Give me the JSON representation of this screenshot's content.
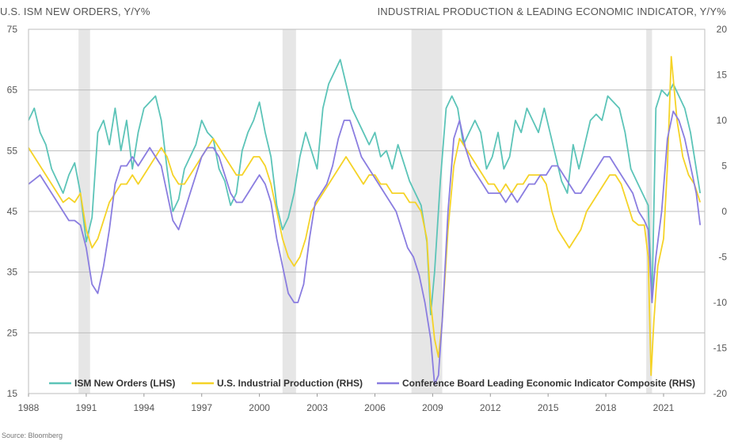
{
  "chart_data": {
    "type": "line",
    "title_left": "U.S. ISM NEW ORDERS, Y/Y%",
    "title_right": "INDUSTRIAL PRODUCTION & LEADING ECONOMIC INDICATOR, Y/Y%",
    "source": "Source: Bloomberg",
    "x_range": [
      1988,
      2023.2
    ],
    "x_ticks": [
      "1988",
      "1991",
      "1994",
      "1997",
      "2000",
      "2003",
      "2006",
      "2009",
      "2012",
      "2015",
      "2018",
      "2021"
    ],
    "x_tick_values": [
      1988,
      1991,
      1994,
      1997,
      2000,
      2003,
      2006,
      2009,
      2012,
      2015,
      2018,
      2021
    ],
    "y_left": {
      "range": [
        15,
        75
      ],
      "ticks": [
        "15",
        "25",
        "35",
        "45",
        "55",
        "65",
        "75"
      ],
      "tick_values": [
        15,
        25,
        35,
        45,
        55,
        65,
        75
      ]
    },
    "y_right": {
      "range": [
        -20,
        20
      ],
      "ticks": [
        "-20",
        "-15",
        "-10",
        "-5",
        "0",
        "5",
        "10",
        "15",
        "20"
      ],
      "tick_values": [
        -20,
        -15,
        -10,
        -5,
        0,
        5,
        10,
        15,
        20
      ]
    },
    "grid": true,
    "legend_placement": "bottom",
    "recessions": [
      [
        1990.6,
        1991.2
      ],
      [
        2001.2,
        2001.9
      ],
      [
        2007.9,
        2009.5
      ],
      [
        2020.1,
        2020.4
      ]
    ],
    "colors": {
      "ism": "#5cc4b8",
      "ip": "#f5d327",
      "lei": "#8a7de0",
      "recession": "#e6e6e6",
      "grid": "#bdbdbd"
    },
    "series": [
      {
        "name": "ISM New Orders (LHS)",
        "axis": "left",
        "color_key": "ism",
        "x": [
          1988,
          1988.3,
          1988.6,
          1988.9,
          1989.2,
          1989.5,
          1989.8,
          1990.1,
          1990.4,
          1990.7,
          1991.0,
          1991.3,
          1991.6,
          1991.9,
          1992.2,
          1992.5,
          1992.8,
          1993.1,
          1993.4,
          1993.7,
          1994.0,
          1994.3,
          1994.6,
          1994.9,
          1995.2,
          1995.5,
          1995.8,
          1996.1,
          1996.4,
          1996.7,
          1997.0,
          1997.3,
          1997.6,
          1997.9,
          1998.2,
          1998.5,
          1998.8,
          1999.1,
          1999.4,
          1999.7,
          2000.0,
          2000.3,
          2000.6,
          2000.9,
          2001.2,
          2001.5,
          2001.8,
          2002.1,
          2002.4,
          2002.7,
          2003.0,
          2003.3,
          2003.6,
          2003.9,
          2004.2,
          2004.5,
          2004.8,
          2005.1,
          2005.4,
          2005.7,
          2006.0,
          2006.3,
          2006.6,
          2006.9,
          2007.2,
          2007.5,
          2007.8,
          2008.1,
          2008.4,
          2008.7,
          2008.9,
          2009.1,
          2009.4,
          2009.7,
          2010.0,
          2010.3,
          2010.6,
          2010.9,
          2011.2,
          2011.5,
          2011.8,
          2012.1,
          2012.4,
          2012.7,
          2013.0,
          2013.3,
          2013.6,
          2013.9,
          2014.2,
          2014.5,
          2014.8,
          2015.1,
          2015.4,
          2015.7,
          2016.0,
          2016.3,
          2016.6,
          2016.9,
          2017.2,
          2017.5,
          2017.8,
          2018.1,
          2018.4,
          2018.7,
          2019.0,
          2019.3,
          2019.6,
          2019.9,
          2020.2,
          2020.4,
          2020.6,
          2020.9,
          2021.2,
          2021.5,
          2021.8,
          2022.1,
          2022.4,
          2022.7,
          2022.9
        ],
        "values": [
          60,
          62,
          58,
          56,
          52,
          50,
          48,
          51,
          53,
          48,
          40,
          44,
          58,
          60,
          56,
          62,
          55,
          60,
          52,
          58,
          62,
          63,
          64,
          60,
          52,
          45,
          47,
          52,
          54,
          56,
          60,
          58,
          57,
          52,
          50,
          46,
          48,
          55,
          58,
          60,
          63,
          58,
          54,
          46,
          42,
          44,
          48,
          54,
          58,
          55,
          52,
          62,
          66,
          68,
          70,
          66,
          62,
          60,
          58,
          56,
          58,
          54,
          55,
          52,
          56,
          53,
          50,
          48,
          46,
          40,
          28,
          35,
          50,
          62,
          64,
          62,
          56,
          58,
          60,
          58,
          52,
          54,
          58,
          52,
          54,
          60,
          58,
          62,
          60,
          58,
          62,
          58,
          54,
          50,
          48,
          56,
          52,
          56,
          60,
          61,
          60,
          64,
          63,
          62,
          58,
          52,
          50,
          48,
          46,
          30,
          62,
          65,
          64,
          66,
          64,
          62,
          58,
          52,
          48
        ]
      },
      {
        "name": "U.S. Industrial Production (RHS)",
        "axis": "right",
        "color_key": "ip",
        "x": [
          1988,
          1988.3,
          1988.6,
          1988.9,
          1989.2,
          1989.5,
          1989.8,
          1990.1,
          1990.4,
          1990.7,
          1991.0,
          1991.3,
          1991.6,
          1991.9,
          1992.2,
          1992.5,
          1992.8,
          1993.1,
          1993.4,
          1993.7,
          1994.0,
          1994.3,
          1994.6,
          1994.9,
          1995.2,
          1995.5,
          1995.8,
          1996.1,
          1996.4,
          1996.7,
          1997.0,
          1997.3,
          1997.6,
          1997.9,
          1998.2,
          1998.5,
          1998.8,
          1999.1,
          1999.4,
          1999.7,
          2000.0,
          2000.3,
          2000.6,
          2000.9,
          2001.2,
          2001.5,
          2001.8,
          2002.1,
          2002.4,
          2002.7,
          2003.0,
          2003.3,
          2003.6,
          2003.9,
          2004.2,
          2004.5,
          2004.8,
          2005.1,
          2005.4,
          2005.7,
          2006.0,
          2006.3,
          2006.6,
          2006.9,
          2007.2,
          2007.5,
          2007.8,
          2008.1,
          2008.4,
          2008.7,
          2008.9,
          2009.1,
          2009.3,
          2009.5,
          2009.8,
          2010.1,
          2010.4,
          2010.7,
          2011.0,
          2011.3,
          2011.6,
          2011.9,
          2012.2,
          2012.5,
          2012.8,
          2013.1,
          2013.4,
          2013.7,
          2014.0,
          2014.3,
          2014.6,
          2014.9,
          2015.2,
          2015.5,
          2015.8,
          2016.1,
          2016.4,
          2016.7,
          2017.0,
          2017.3,
          2017.6,
          2017.9,
          2018.2,
          2018.5,
          2018.8,
          2019.1,
          2019.4,
          2019.7,
          2020.0,
          2020.2,
          2020.35,
          2020.5,
          2020.7,
          2021.0,
          2021.2,
          2021.4,
          2021.7,
          2022.0,
          2022.3,
          2022.6,
          2022.9
        ],
        "values": [
          7,
          6,
          5,
          4,
          3,
          2,
          1,
          1.5,
          1,
          2,
          -2,
          -4,
          -3,
          -1,
          1,
          2,
          3,
          3,
          4,
          3,
          4,
          5,
          6,
          7,
          6,
          4,
          3,
          3,
          4,
          5,
          6,
          7,
          8,
          7,
          6,
          5,
          4,
          4,
          5,
          6,
          6,
          5,
          3,
          0,
          -3,
          -5,
          -6,
          -5,
          -3,
          0,
          1,
          2,
          3,
          4,
          5,
          6,
          5,
          4,
          3,
          4,
          4,
          3,
          3,
          2,
          2,
          2,
          1,
          1,
          0,
          -3,
          -10,
          -14,
          -16,
          -12,
          -2,
          5,
          8,
          7,
          6,
          5,
          4,
          3,
          3,
          2,
          3,
          2,
          3,
          3,
          4,
          4,
          4,
          3,
          0,
          -2,
          -3,
          -4,
          -3,
          -2,
          0,
          1,
          2,
          3,
          4,
          4,
          3,
          1,
          -1,
          -1.5,
          -1.5,
          -5,
          -18,
          -12,
          -6,
          -3,
          5,
          17,
          10,
          6,
          4,
          3,
          1
        ]
      },
      {
        "name": "Conference Board Leading Economic Indicator Composite (RHS)",
        "axis": "right",
        "color_key": "lei",
        "x": [
          1988,
          1988.3,
          1988.6,
          1988.9,
          1989.2,
          1989.5,
          1989.8,
          1990.1,
          1990.4,
          1990.7,
          1991.0,
          1991.3,
          1991.6,
          1991.9,
          1992.2,
          1992.5,
          1992.8,
          1993.1,
          1993.4,
          1993.7,
          1994.0,
          1994.3,
          1994.6,
          1994.9,
          1995.2,
          1995.5,
          1995.8,
          1996.1,
          1996.4,
          1996.7,
          1997.0,
          1997.3,
          1997.6,
          1997.9,
          1998.2,
          1998.5,
          1998.8,
          1999.1,
          1999.4,
          1999.7,
          2000.0,
          2000.3,
          2000.6,
          2000.9,
          2001.2,
          2001.5,
          2001.8,
          2002.0,
          2002.3,
          2002.6,
          2002.9,
          2003.2,
          2003.5,
          2003.8,
          2004.1,
          2004.4,
          2004.7,
          2005.0,
          2005.3,
          2005.6,
          2005.9,
          2006.2,
          2006.5,
          2006.8,
          2007.1,
          2007.4,
          2007.7,
          2008.0,
          2008.3,
          2008.6,
          2008.9,
          2009.1,
          2009.3,
          2009.5,
          2009.8,
          2010.1,
          2010.4,
          2010.7,
          2011.0,
          2011.3,
          2011.6,
          2011.9,
          2012.2,
          2012.5,
          2012.8,
          2013.1,
          2013.4,
          2013.7,
          2014.0,
          2014.3,
          2014.6,
          2014.9,
          2015.2,
          2015.5,
          2015.8,
          2016.1,
          2016.4,
          2016.7,
          2017.0,
          2017.3,
          2017.6,
          2017.9,
          2018.2,
          2018.5,
          2018.8,
          2019.1,
          2019.4,
          2019.7,
          2020.0,
          2020.2,
          2020.4,
          2020.6,
          2020.9,
          2021.2,
          2021.5,
          2021.8,
          2022.1,
          2022.4,
          2022.7,
          2022.9
        ],
        "values": [
          3,
          3.5,
          4,
          3,
          2,
          1,
          0,
          -1,
          -1,
          -1.5,
          -4,
          -8,
          -9,
          -6,
          -2,
          3,
          5,
          5,
          6,
          5,
          6,
          7,
          6,
          5,
          2,
          -1,
          -2,
          0,
          2,
          4,
          6,
          7,
          7,
          6,
          4,
          2,
          1,
          1,
          2,
          3,
          4,
          3,
          1,
          -3,
          -6,
          -9,
          -10,
          -10,
          -8,
          -3,
          1,
          2,
          3,
          5,
          8,
          10,
          10,
          8,
          6,
          5,
          4,
          3,
          2,
          1,
          0,
          -2,
          -4,
          -5,
          -7,
          -10,
          -14,
          -19,
          -18,
          -12,
          0,
          8,
          10,
          7,
          5,
          4,
          3,
          2,
          2,
          2,
          1,
          2,
          1,
          2,
          3,
          3,
          4,
          4,
          5,
          5,
          4,
          3,
          2,
          2,
          3,
          4,
          5,
          6,
          6,
          5,
          4,
          3,
          2,
          0,
          -1,
          -2,
          -10,
          -5,
          0,
          8,
          11,
          10,
          8,
          5,
          2,
          -1.5
        ]
      }
    ]
  }
}
